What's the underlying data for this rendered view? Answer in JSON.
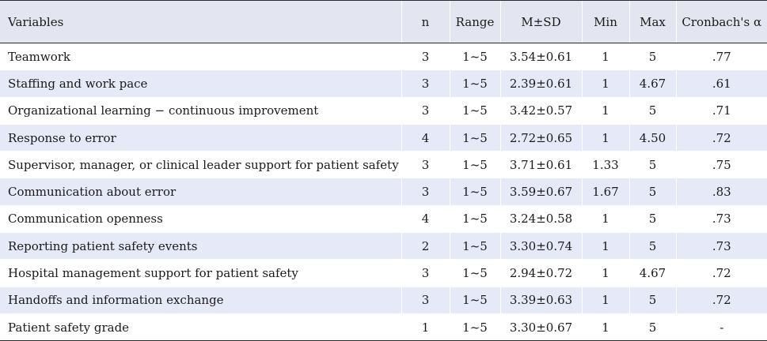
{
  "headers": [
    "Variables",
    "n",
    "Range",
    "M±SD",
    "Min",
    "Max",
    "Cronbach's α"
  ],
  "rows": [
    [
      "Teamwork",
      "3",
      "1~5",
      "3.54±0.61",
      "1",
      "5",
      ".77"
    ],
    [
      "Staffing and work pace",
      "3",
      "1~5",
      "2.39±0.61",
      "1",
      "4.67",
      ".61"
    ],
    [
      "Organizational learning − continuous improvement",
      "3",
      "1~5",
      "3.42±0.57",
      "1",
      "5",
      ".71"
    ],
    [
      "Response to error",
      "4",
      "1~5",
      "2.72±0.65",
      "1",
      "4.50",
      ".72"
    ],
    [
      "Supervisor, manager, or clinical leader support for patient safety",
      "3",
      "1~5",
      "3.71±0.61",
      "1.33",
      "5",
      ".75"
    ],
    [
      "Communication about error",
      "3",
      "1~5",
      "3.59±0.67",
      "1.67",
      "5",
      ".83"
    ],
    [
      "Communication openness",
      "4",
      "1~5",
      "3.24±0.58",
      "1",
      "5",
      ".73"
    ],
    [
      "Reporting patient safety events",
      "2",
      "1~5",
      "3.30±0.74",
      "1",
      "5",
      ".73"
    ],
    [
      "Hospital management support for patient safety",
      "3",
      "1~5",
      "2.94±0.72",
      "1",
      "4.67",
      ".72"
    ],
    [
      "Handoffs and information exchange",
      "3",
      "1~5",
      "3.39±0.63",
      "1",
      "5",
      ".72"
    ],
    [
      "Patient safety grade",
      "1",
      "1~5",
      "3.30±0.67",
      "1",
      "5",
      "-"
    ]
  ]
}
